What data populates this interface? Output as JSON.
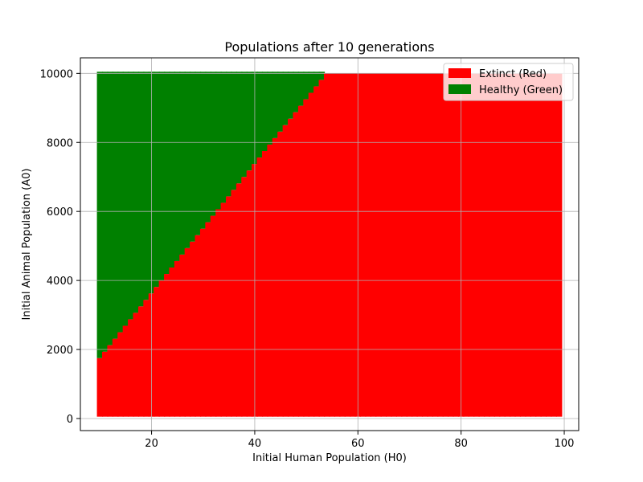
{
  "chart_data": {
    "type": "scatter",
    "title": "Populations after 10 generations",
    "xlabel": "Initial Human Population (H0)",
    "ylabel": "Initial Animal Population (A0)",
    "xlim": [
      6.2,
      102.8
    ],
    "ylim": [
      -350,
      10450
    ],
    "xticks": [
      20,
      40,
      60,
      80,
      100
    ],
    "yticks": [
      0,
      2000,
      4000,
      6000,
      8000,
      10000
    ],
    "xtick_labels": [
      "20",
      "40",
      "60",
      "80",
      "100"
    ],
    "ytick_labels": [
      "0",
      "2000",
      "4000",
      "6000",
      "8000",
      "10000"
    ],
    "grid": true,
    "h0_range": [
      10,
      99
    ],
    "a0_range": [
      100,
      10000
    ],
    "boundary": {
      "description": "Healthy when A0 exceeds boundary line through these points",
      "points": [
        [
          10,
          1750
        ],
        [
          54,
          10000
        ]
      ]
    },
    "series": [
      {
        "name": "Extinct (Red)",
        "color": "#ff0000"
      },
      {
        "name": "Healthy (Green)",
        "color": "#008000"
      }
    ],
    "legend": {
      "position": "top-right"
    }
  }
}
